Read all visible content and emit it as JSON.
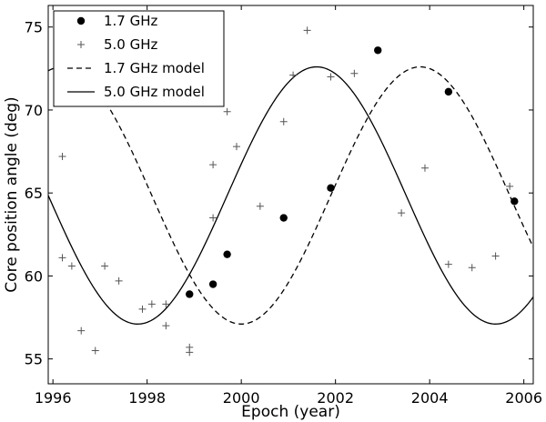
{
  "chart_data": {
    "type": "scatter",
    "xlabel": "Epoch (year)",
    "ylabel": "Core position angle (deg)",
    "xlim": [
      1995.9,
      2006.2
    ],
    "ylim": [
      53.5,
      76.3
    ],
    "xticks": [
      1996,
      1998,
      2000,
      2002,
      2004,
      2006
    ],
    "yticks": [
      55,
      60,
      65,
      70,
      75
    ],
    "legend_position": "top-left",
    "series": [
      {
        "name": "1.7 GHz",
        "kind": "points",
        "marker": "filled-circle",
        "points": [
          [
            1998.9,
            58.9
          ],
          [
            1999.4,
            59.5
          ],
          [
            1999.7,
            61.3
          ],
          [
            2000.9,
            63.5
          ],
          [
            2001.9,
            65.3
          ],
          [
            2002.9,
            73.6
          ],
          [
            2004.4,
            71.1
          ],
          [
            2005.8,
            64.5
          ]
        ]
      },
      {
        "name": "5.0 GHz",
        "kind": "points",
        "marker": "plus",
        "points": [
          [
            1996.2,
            67.2
          ],
          [
            1996.2,
            61.1
          ],
          [
            1996.4,
            60.6
          ],
          [
            1996.6,
            56.7
          ],
          [
            1996.9,
            55.5
          ],
          [
            1997.1,
            60.6
          ],
          [
            1997.4,
            59.7
          ],
          [
            1997.9,
            58.0
          ],
          [
            1998.1,
            58.3
          ],
          [
            1998.4,
            57.0
          ],
          [
            1998.4,
            58.3
          ],
          [
            1998.9,
            55.7
          ],
          [
            1998.9,
            55.4
          ],
          [
            1999.4,
            63.5
          ],
          [
            1999.4,
            66.7
          ],
          [
            1999.7,
            69.9
          ],
          [
            1999.9,
            67.8
          ],
          [
            2000.4,
            64.2
          ],
          [
            2000.9,
            69.3
          ],
          [
            2001.1,
            72.1
          ],
          [
            2001.4,
            74.8
          ],
          [
            2001.9,
            72.0
          ],
          [
            2002.4,
            72.2
          ],
          [
            2003.4,
            63.8
          ],
          [
            2003.9,
            66.5
          ],
          [
            2004.4,
            60.7
          ],
          [
            2004.9,
            60.5
          ],
          [
            2005.4,
            61.2
          ],
          [
            2005.7,
            65.4
          ]
        ]
      },
      {
        "name": "1.7 GHz model",
        "kind": "line",
        "style": "dashed",
        "model": {
          "mean": 64.85,
          "amplitude": 7.75,
          "period": 7.6,
          "peak_epoch": 1996.2
        }
      },
      {
        "name": "5.0 GHz model",
        "kind": "line",
        "style": "solid",
        "model": {
          "mean": 64.85,
          "amplitude": 7.75,
          "period": 7.6,
          "peak_epoch": 2001.6
        }
      }
    ]
  }
}
